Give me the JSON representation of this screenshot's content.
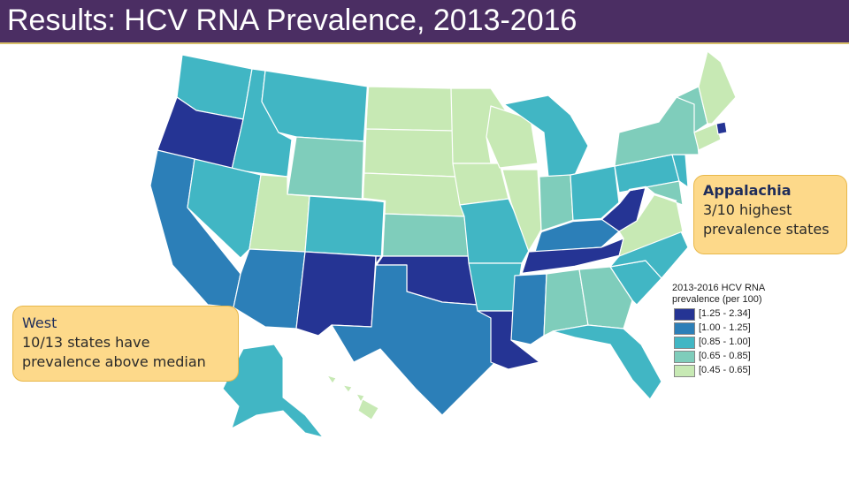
{
  "title": "Results: HCV RNA Prevalence, 2013-2016",
  "callouts": {
    "appalachia": {
      "heading": "Appalachia",
      "line1": "3/10 highest",
      "line2": "prevalence states"
    },
    "west": {
      "heading": "West",
      "line1": "10/13 states have",
      "line2": "prevalence above median"
    }
  },
  "legend": {
    "title_line1": "2013-2016 HCV RNA",
    "title_line2": "prevalence (per 100)",
    "items": [
      {
        "label": "[1.25 - 2.34]",
        "color": "#253494"
      },
      {
        "label": "[1.00 - 1.25]",
        "color": "#2c7fb8"
      },
      {
        "label": "[0.85 - 1.00]",
        "color": "#41b6c4"
      },
      {
        "label": "[0.65 - 0.85]",
        "color": "#7fcdbb"
      },
      {
        "label": "[0.45 - 0.65]",
        "color": "#c7e9b4"
      }
    ]
  },
  "colors": {
    "title_bar": "#4b2e63",
    "callout_fill": "#fdd98a",
    "state_border": "#ffffff"
  },
  "map_regions": [
    {
      "region": "Oregon",
      "class": "[1.25 - 2.34]"
    },
    {
      "region": "Washington",
      "class": "[0.85 - 1.00]"
    },
    {
      "region": "California",
      "class": "[1.00 - 1.25]"
    },
    {
      "region": "Idaho",
      "class": "[0.85 - 1.00]"
    },
    {
      "region": "Nevada",
      "class": "[0.85 - 1.00]"
    },
    {
      "region": "Montana",
      "class": "[0.85 - 1.00]"
    },
    {
      "region": "Wyoming",
      "class": "[0.65 - 0.85]"
    },
    {
      "region": "Utah",
      "class": "[0.45 - 0.65]"
    },
    {
      "region": "Arizona",
      "class": "[1.00 - 1.25]"
    },
    {
      "region": "Colorado",
      "class": "[0.85 - 1.00]"
    },
    {
      "region": "New Mexico",
      "class": "[1.25 - 2.34]"
    },
    {
      "region": "North Dakota",
      "class": "[0.45 - 0.65]"
    },
    {
      "region": "South Dakota",
      "class": "[0.45 - 0.65]"
    },
    {
      "region": "Nebraska",
      "class": "[0.45 - 0.65]"
    },
    {
      "region": "Kansas",
      "class": "[0.65 - 0.85]"
    },
    {
      "region": "Oklahoma",
      "class": "[1.25 - 2.34]"
    },
    {
      "region": "Texas",
      "class": "[1.00 - 1.25]"
    },
    {
      "region": "Minnesota",
      "class": "[0.45 - 0.65]"
    },
    {
      "region": "Iowa",
      "class": "[0.45 - 0.65]"
    },
    {
      "region": "Missouri",
      "class": "[0.85 - 1.00]"
    },
    {
      "region": "Arkansas",
      "class": "[0.85 - 1.00]"
    },
    {
      "region": "Louisiana",
      "class": "[1.25 - 2.34]"
    },
    {
      "region": "Wisconsin",
      "class": "[0.45 - 0.65]"
    },
    {
      "region": "Illinois",
      "class": "[0.45 - 0.65]"
    },
    {
      "region": "Michigan",
      "class": "[0.85 - 1.00]"
    },
    {
      "region": "Indiana",
      "class": "[0.65 - 0.85]"
    },
    {
      "region": "Ohio",
      "class": "[0.85 - 1.00]"
    },
    {
      "region": "Kentucky",
      "class": "[1.00 - 1.25]"
    },
    {
      "region": "Tennessee",
      "class": "[1.25 - 2.34]"
    },
    {
      "region": "Mississippi",
      "class": "[1.00 - 1.25]"
    },
    {
      "region": "Alabama",
      "class": "[0.65 - 0.85]"
    },
    {
      "region": "Georgia",
      "class": "[0.65 - 0.85]"
    },
    {
      "region": "Florida",
      "class": "[0.85 - 1.00]"
    },
    {
      "region": "South Carolina",
      "class": "[0.85 - 1.00]"
    },
    {
      "region": "North Carolina",
      "class": "[0.85 - 1.00]"
    },
    {
      "region": "Virginia",
      "class": "[0.45 - 0.65]"
    },
    {
      "region": "West Virginia",
      "class": "[1.25 - 2.34]"
    },
    {
      "region": "Pennsylvania",
      "class": "[0.85 - 1.00]"
    },
    {
      "region": "New York",
      "class": "[0.65 - 0.85]"
    },
    {
      "region": "Maine",
      "class": "[0.45 - 0.65]"
    },
    {
      "region": "Alaska",
      "class": "[0.85 - 1.00]"
    },
    {
      "region": "Hawaii",
      "class": "[0.45 - 0.65]"
    }
  ]
}
